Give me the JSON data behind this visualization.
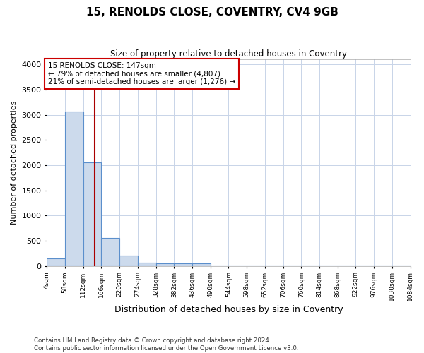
{
  "title": "15, RENOLDS CLOSE, COVENTRY, CV4 9GB",
  "subtitle": "Size of property relative to detached houses in Coventry",
  "xlabel": "Distribution of detached houses by size in Coventry",
  "ylabel": "Number of detached properties",
  "bin_edges": [
    4,
    58,
    112,
    166,
    220,
    274,
    328,
    382,
    436,
    490,
    544,
    598,
    652,
    706,
    760,
    814,
    868,
    922,
    976,
    1030,
    1084
  ],
  "bar_heights": [
    150,
    3060,
    2060,
    560,
    205,
    60,
    55,
    45,
    45,
    0,
    0,
    0,
    0,
    0,
    0,
    0,
    0,
    0,
    0,
    0
  ],
  "bar_color": "#ccdaec",
  "bar_edgecolor": "#5b8fcc",
  "property_size": 147,
  "property_label_line1": "15 RENOLDS CLOSE: 147sqm",
  "property_label_line2": "← 79% of detached houses are smaller (4,807)",
  "property_label_line3": "21% of semi-detached houses are larger (1,276) →",
  "vline_color": "#aa0000",
  "annotation_box_edgecolor": "#cc0000",
  "ylim": [
    0,
    4100
  ],
  "yticks": [
    0,
    500,
    1000,
    1500,
    2000,
    2500,
    3000,
    3500,
    4000
  ],
  "footer_line1": "Contains HM Land Registry data © Crown copyright and database right 2024.",
  "footer_line2": "Contains public sector information licensed under the Open Government Licence v3.0.",
  "background_color": "#ffffff",
  "grid_color": "#c8d4e8"
}
